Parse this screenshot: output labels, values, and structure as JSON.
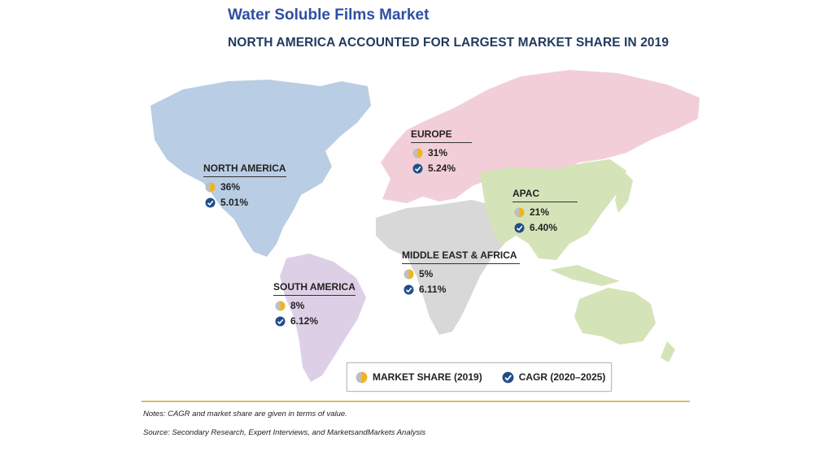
{
  "title": "Water Soluble Films Market",
  "subtitle": "NORTH AMERICA ACCOUNTED FOR LARGEST MARKET SHARE IN 2019",
  "regions": [
    {
      "name": "NORTH AMERICA",
      "share": "36%",
      "cagr": "5.01%",
      "color": "#b9cde4"
    },
    {
      "name": "EUROPE",
      "share": "31%",
      "cagr": "5.24%",
      "color": "#f2cfd8"
    },
    {
      "name": "APAC",
      "share": "21%",
      "cagr": "6.40%",
      "color": "#d5e3b9"
    },
    {
      "name": "MIDDLE EAST & AFRICA",
      "share": "5%",
      "cagr": "6.11%",
      "color": "#d8d8d8"
    },
    {
      "name": "SOUTH AMERICA",
      "share": "8%",
      "cagr": "6.12%",
      "color": "#ddd0e6"
    }
  ],
  "legend": {
    "market_share": "MARKET SHARE (2019)",
    "cagr": "CAGR (2020–2025)"
  },
  "icons": {
    "market_share": "half-pie-icon",
    "cagr": "check-circle-icon"
  },
  "colors": {
    "pie_gold": "#f2b41c",
    "pie_grey": "#bfbfbf",
    "check_blue": "#1f4e8c",
    "rule": "#d9b96a"
  },
  "notes": {
    "line1": "Notes: CAGR and market share are given in terms of value.",
    "line2": "Source: Secondary Research, Expert Interviews, and MarketsandMarkets Analysis"
  }
}
